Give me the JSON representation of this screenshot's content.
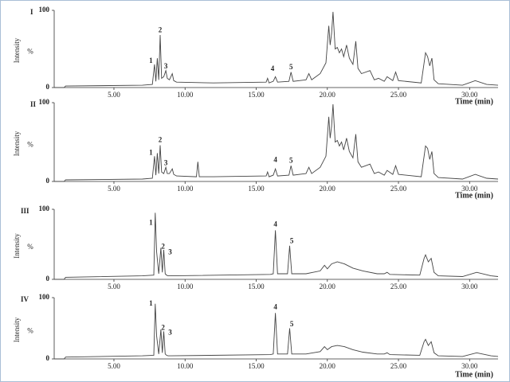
{
  "chart_data": [
    {
      "type": "line",
      "label": "I",
      "y_label": "Intensity",
      "y_unit_label": "%",
      "x_label": "Time  (min)",
      "xlim": [
        0.8,
        32
      ],
      "ylim": [
        0,
        100
      ],
      "yticks": [
        0,
        100
      ],
      "xticks": [
        {
          "value": 5,
          "label": "5.00"
        },
        {
          "value": 10,
          "label": "10.00"
        },
        {
          "value": 15,
          "label": "15.00"
        },
        {
          "value": 20,
          "label": "20.00"
        },
        {
          "value": 25,
          "label": "25.00"
        },
        {
          "value": 30,
          "label": "30.00"
        }
      ],
      "color": "#444444",
      "x": [
        0.8,
        1.5,
        1.6,
        7,
        7.7,
        7.85,
        7.95,
        8.05,
        8.15,
        8.25,
        8.35,
        8.5,
        8.65,
        8.75,
        8.9,
        9.1,
        9.2,
        9.4,
        12,
        15.7,
        15.8,
        15.9,
        16.2,
        16.35,
        16.5,
        17.3,
        17.45,
        17.6,
        18.5,
        18.7,
        18.9,
        19.5,
        19.9,
        20.1,
        20.2,
        20.3,
        20.4,
        20.55,
        20.7,
        20.85,
        21,
        21.15,
        21.35,
        21.55,
        21.8,
        22,
        22.15,
        22.4,
        23,
        23.3,
        23.6,
        24,
        24.2,
        24.6,
        24.8,
        25,
        26.6,
        26.9,
        27.05,
        27.2,
        27.35,
        27.5,
        27.8,
        29.5,
        30.4,
        31.2,
        32
      ],
      "values": [
        0,
        0,
        2,
        3,
        4,
        30,
        8,
        38,
        10,
        68,
        12,
        14,
        22,
        12,
        10,
        18,
        9,
        7,
        6,
        7,
        12,
        6,
        8,
        14,
        7,
        8,
        20,
        8,
        10,
        18,
        10,
        18,
        32,
        80,
        55,
        70,
        98,
        50,
        52,
        45,
        50,
        40,
        55,
        38,
        30,
        60,
        25,
        18,
        22,
        10,
        12,
        8,
        14,
        9,
        20,
        9,
        6,
        45,
        40,
        28,
        38,
        10,
        5,
        3,
        9,
        4,
        3
      ],
      "annotations": [
        {
          "text": "1",
          "x": 7.6,
          "y": 34
        },
        {
          "text": "2",
          "x": 8.25,
          "y": 74
        },
        {
          "text": "3",
          "x": 8.65,
          "y": 27
        },
        {
          "text": "4",
          "x": 16.15,
          "y": 24
        },
        {
          "text": "5",
          "x": 17.45,
          "y": 26
        }
      ]
    },
    {
      "type": "line",
      "label": "II",
      "y_label": "Intensity",
      "y_unit_label": "%",
      "x_label": "Time  (min)",
      "xlim": [
        0.8,
        32
      ],
      "ylim": [
        0,
        100
      ],
      "yticks": [
        0,
        100
      ],
      "xticks": [
        {
          "value": 5,
          "label": "5.00"
        },
        {
          "value": 10,
          "label": "10.00"
        },
        {
          "value": 15,
          "label": "15.00"
        },
        {
          "value": 20,
          "label": "20.00"
        },
        {
          "value": 25,
          "label": "25.00"
        },
        {
          "value": 30,
          "label": "30.00"
        }
      ],
      "color": "#444444",
      "x": [
        0.8,
        1.5,
        1.6,
        7,
        7.7,
        7.85,
        7.95,
        8.05,
        8.15,
        8.25,
        8.35,
        8.5,
        8.65,
        8.75,
        8.9,
        9.1,
        9.2,
        9.4,
        10.8,
        10.9,
        11.0,
        12,
        15.7,
        15.8,
        15.9,
        16.2,
        16.35,
        16.5,
        17.3,
        17.45,
        17.6,
        18.5,
        18.7,
        18.9,
        19.5,
        19.9,
        20.1,
        20.2,
        20.3,
        20.4,
        20.55,
        20.7,
        20.85,
        21,
        21.15,
        21.35,
        21.55,
        21.8,
        22,
        22.15,
        22.4,
        23,
        23.3,
        23.6,
        24,
        24.2,
        24.6,
        24.8,
        25,
        26.6,
        26.9,
        27.05,
        27.2,
        27.35,
        27.5,
        27.8,
        29.5,
        30.4,
        31.2,
        32
      ],
      "values": [
        0,
        0,
        2,
        3,
        4,
        32,
        8,
        36,
        10,
        46,
        12,
        10,
        18,
        10,
        10,
        16,
        9,
        7,
        6,
        25,
        6,
        6,
        7,
        12,
        6,
        8,
        16,
        7,
        8,
        20,
        8,
        10,
        18,
        10,
        18,
        32,
        82,
        55,
        70,
        98,
        50,
        52,
        45,
        50,
        40,
        55,
        38,
        30,
        60,
        25,
        18,
        22,
        10,
        12,
        8,
        14,
        9,
        20,
        9,
        6,
        45,
        42,
        28,
        38,
        10,
        5,
        3,
        9,
        4,
        3
      ],
      "annotations": [
        {
          "text": "1",
          "x": 7.6,
          "y": 36
        },
        {
          "text": "2",
          "x": 8.25,
          "y": 52
        },
        {
          "text": "3",
          "x": 8.65,
          "y": 23
        },
        {
          "text": "4",
          "x": 16.35,
          "y": 27
        },
        {
          "text": "5",
          "x": 17.45,
          "y": 26
        }
      ]
    },
    {
      "type": "line",
      "label": "III",
      "y_label": "Intensity",
      "y_unit_label": "%",
      "xlim": [
        0.8,
        32
      ],
      "ylim": [
        0,
        100
      ],
      "yticks": [
        0,
        100
      ],
      "xticks": [
        {
          "value": 5,
          "label": "5.00"
        },
        {
          "value": 10,
          "label": "10.00"
        },
        {
          "value": 15,
          "label": "15.00"
        },
        {
          "value": 20,
          "label": "20.00"
        },
        {
          "value": 25,
          "label": "25.00"
        },
        {
          "value": 30,
          "label": "30.00"
        }
      ],
      "color": "#444444",
      "x": [
        0.8,
        1.5,
        1.6,
        7,
        7.8,
        7.9,
        8.0,
        8.15,
        8.3,
        8.4,
        8.5,
        8.6,
        8.7,
        8.8,
        9,
        16,
        16.2,
        16.35,
        16.5,
        17.2,
        17.35,
        17.5,
        18.5,
        19,
        19.5,
        19.8,
        20,
        20.3,
        20.7,
        21.2,
        21.8,
        22.5,
        23.5,
        24,
        24.2,
        24.4,
        26.5,
        26.8,
        26.9,
        27.1,
        27.3,
        27.5,
        27.8,
        29.5,
        30.5,
        31.5,
        32
      ],
      "values": [
        0,
        0,
        3,
        5,
        6,
        95,
        40,
        8,
        45,
        10,
        42,
        8,
        6,
        5,
        5,
        7,
        8,
        70,
        8,
        8,
        48,
        8,
        8,
        10,
        12,
        20,
        15,
        22,
        25,
        22,
        16,
        12,
        8,
        8,
        10,
        7,
        6,
        30,
        35,
        25,
        30,
        10,
        5,
        4,
        10,
        5,
        4
      ],
      "annotations": [
        {
          "text": "1",
          "x": 7.6,
          "y": 80
        },
        {
          "text": "2",
          "x": 8.45,
          "y": 46
        },
        {
          "text": "3",
          "x": 8.95,
          "y": 38
        },
        {
          "text": "4",
          "x": 16.35,
          "y": 78
        },
        {
          "text": "5",
          "x": 17.5,
          "y": 54
        }
      ]
    },
    {
      "type": "line",
      "label": "IV",
      "y_label": "Intensity",
      "y_unit_label": "%",
      "x_label": "Time  (min)",
      "xlim": [
        0.8,
        32
      ],
      "ylim": [
        0,
        100
      ],
      "yticks": [
        0,
        100
      ],
      "xticks": [
        {
          "value": 5,
          "label": "5.00"
        },
        {
          "value": 10,
          "label": "10.00"
        },
        {
          "value": 15,
          "label": "15.00"
        },
        {
          "value": 20,
          "label": "20.00"
        },
        {
          "value": 25,
          "label": "25.00"
        },
        {
          "value": 30,
          "label": "30.00"
        }
      ],
      "color": "#444444",
      "x": [
        0.8,
        1.5,
        1.6,
        7,
        7.8,
        7.9,
        8.0,
        8.15,
        8.3,
        8.4,
        8.5,
        8.6,
        8.7,
        8.8,
        9,
        16,
        16.2,
        16.35,
        16.5,
        17.2,
        17.35,
        17.5,
        18.5,
        19,
        19.5,
        19.8,
        20,
        20.3,
        20.7,
        21.2,
        21.8,
        22.5,
        23.5,
        24,
        24.2,
        24.4,
        26.5,
        26.8,
        26.9,
        27.1,
        27.3,
        27.5,
        27.8,
        29.5,
        30.5,
        31.5,
        32
      ],
      "values": [
        0,
        0,
        3,
        5,
        6,
        90,
        38,
        8,
        48,
        10,
        45,
        8,
        6,
        5,
        5,
        7,
        8,
        75,
        8,
        8,
        50,
        8,
        8,
        10,
        12,
        20,
        15,
        20,
        22,
        20,
        15,
        11,
        8,
        8,
        10,
        7,
        6,
        28,
        32,
        22,
        28,
        10,
        5,
        4,
        10,
        5,
        4
      ],
      "annotations": [
        {
          "text": "1",
          "x": 7.6,
          "y": 90
        },
        {
          "text": "2",
          "x": 8.45,
          "y": 50
        },
        {
          "text": "3",
          "x": 8.95,
          "y": 42
        },
        {
          "text": "4",
          "x": 16.35,
          "y": 84
        },
        {
          "text": "5",
          "x": 17.5,
          "y": 56
        }
      ]
    }
  ]
}
